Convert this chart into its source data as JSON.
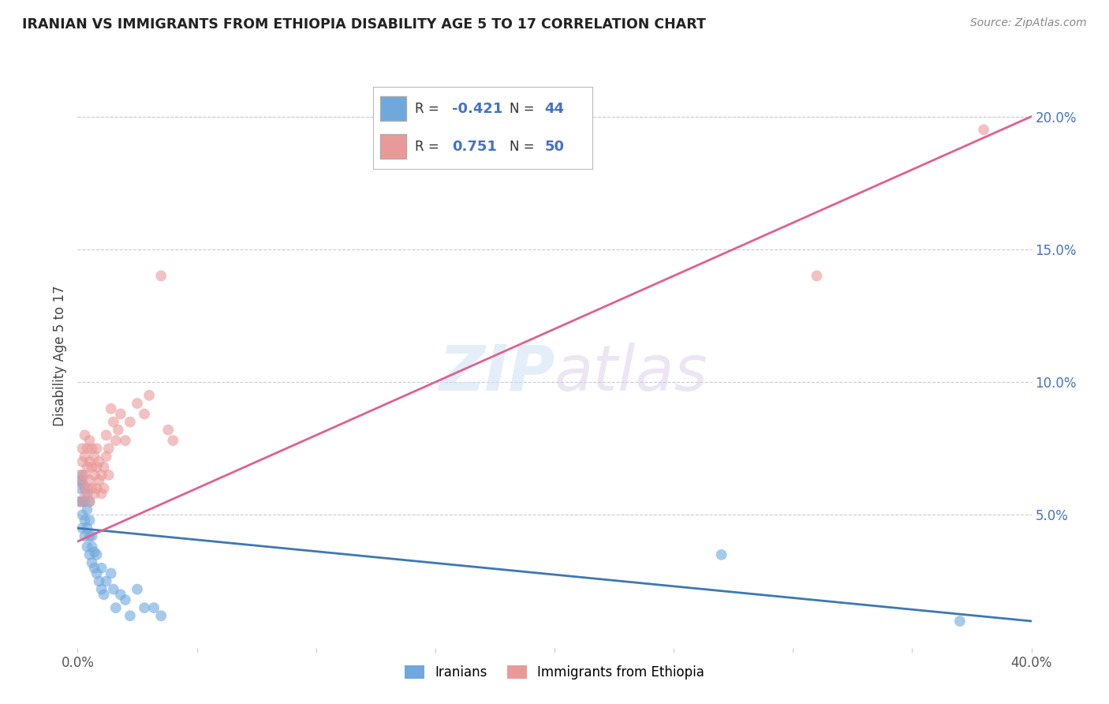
{
  "title": "IRANIAN VS IMMIGRANTS FROM ETHIOPIA DISABILITY AGE 5 TO 17 CORRELATION CHART",
  "source": "Source: ZipAtlas.com",
  "ylabel": "Disability Age 5 to 17",
  "xlim": [
    0.0,
    0.4
  ],
  "ylim": [
    0.0,
    0.22
  ],
  "yticks_right": [
    0.05,
    0.1,
    0.15,
    0.2
  ],
  "ytick_right_labels": [
    "5.0%",
    "10.0%",
    "15.0%",
    "20.0%"
  ],
  "blue_color": "#6fa8dc",
  "pink_color": "#ea9999",
  "blue_line_color": "#3d78b5",
  "pink_line_color": "#e06090",
  "legend_label_iranians": "Iranians",
  "legend_label_ethiopia": "Immigrants from Ethiopia",
  "iranians_x": [
    0.001,
    0.001,
    0.001,
    0.002,
    0.002,
    0.002,
    0.002,
    0.002,
    0.003,
    0.003,
    0.003,
    0.003,
    0.004,
    0.004,
    0.004,
    0.004,
    0.005,
    0.005,
    0.005,
    0.005,
    0.006,
    0.006,
    0.006,
    0.007,
    0.007,
    0.008,
    0.008,
    0.009,
    0.01,
    0.01,
    0.011,
    0.012,
    0.014,
    0.015,
    0.016,
    0.018,
    0.02,
    0.022,
    0.025,
    0.028,
    0.032,
    0.035,
    0.27,
    0.37
  ],
  "iranians_y": [
    0.055,
    0.06,
    0.063,
    0.045,
    0.05,
    0.055,
    0.062,
    0.065,
    0.042,
    0.048,
    0.055,
    0.06,
    0.038,
    0.045,
    0.052,
    0.058,
    0.035,
    0.042,
    0.048,
    0.055,
    0.032,
    0.038,
    0.042,
    0.03,
    0.036,
    0.028,
    0.035,
    0.025,
    0.022,
    0.03,
    0.02,
    0.025,
    0.028,
    0.022,
    0.015,
    0.02,
    0.018,
    0.012,
    0.022,
    0.015,
    0.015,
    0.012,
    0.035,
    0.01
  ],
  "ethiopia_x": [
    0.001,
    0.001,
    0.002,
    0.002,
    0.002,
    0.003,
    0.003,
    0.003,
    0.003,
    0.004,
    0.004,
    0.004,
    0.005,
    0.005,
    0.005,
    0.005,
    0.006,
    0.006,
    0.006,
    0.007,
    0.007,
    0.007,
    0.008,
    0.008,
    0.008,
    0.009,
    0.009,
    0.01,
    0.01,
    0.011,
    0.011,
    0.012,
    0.012,
    0.013,
    0.013,
    0.014,
    0.015,
    0.016,
    0.017,
    0.018,
    0.02,
    0.022,
    0.025,
    0.028,
    0.03,
    0.035,
    0.038,
    0.04,
    0.31,
    0.38
  ],
  "ethiopia_y": [
    0.055,
    0.065,
    0.062,
    0.07,
    0.075,
    0.058,
    0.065,
    0.072,
    0.08,
    0.06,
    0.068,
    0.075,
    0.055,
    0.063,
    0.07,
    0.078,
    0.06,
    0.068,
    0.075,
    0.058,
    0.065,
    0.072,
    0.06,
    0.068,
    0.075,
    0.063,
    0.07,
    0.058,
    0.065,
    0.06,
    0.068,
    0.072,
    0.08,
    0.065,
    0.075,
    0.09,
    0.085,
    0.078,
    0.082,
    0.088,
    0.078,
    0.085,
    0.092,
    0.088,
    0.095,
    0.14,
    0.082,
    0.078,
    0.14,
    0.195
  ],
  "background_color": "#ffffff",
  "grid_color": "#cccccc"
}
